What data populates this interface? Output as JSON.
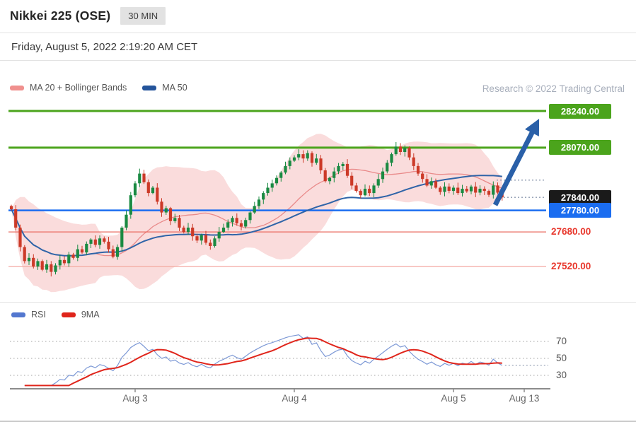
{
  "header": {
    "title": "Nikkei 225 (OSE)",
    "timeframe_badge": "30 MIN",
    "datetime": "Friday, August 5, 2022 2:19:20 AM CET"
  },
  "main_legend": {
    "ma20_label": "MA 20 + Bollinger Bands",
    "ma50_label": "MA 50",
    "watermark": "Research © 2022 Trading Central"
  },
  "rsi_legend": {
    "rsi_label": "RSI",
    "ma_label": "9MA"
  },
  "chart_data": {
    "type": "candlestick",
    "symbol": "Nikkei 225 (OSE)",
    "interval": "30 MIN",
    "as_of": "Friday, August 5, 2022 2:19:20 AM CET",
    "levels": [
      {
        "price": 28240.0,
        "label": "28240.00",
        "role": "resistance-2",
        "line_color": "#4ba41c",
        "line_width": 3,
        "badge": "green"
      },
      {
        "price": 28070.0,
        "label": "28070.00",
        "role": "resistance-1",
        "line_color": "#4ba41c",
        "line_width": 3,
        "badge": "green"
      },
      {
        "price": 27840.0,
        "label": "27840.00",
        "role": "last-price",
        "line_color": null,
        "line_width": 0,
        "badge": "black"
      },
      {
        "price": 27780.0,
        "label": "27780.00",
        "role": "pivot",
        "line_color": "#1b6df0",
        "line_width": 2.5,
        "badge": "blue"
      },
      {
        "price": 27680.0,
        "label": "27680.00",
        "role": "support-1",
        "line_color": "#ea6a5f",
        "line_width": 1.3,
        "badge": "text"
      },
      {
        "price": 27520.0,
        "label": "27520.00",
        "role": "support-2",
        "line_color": "#f4a8a0",
        "line_width": 1.3,
        "badge": "text"
      }
    ],
    "x_ticks": [
      {
        "label": "Aug 3",
        "index": 28
      },
      {
        "label": "Aug 4",
        "index": 64
      },
      {
        "label": "Aug 5",
        "index": 100
      },
      {
        "label": "Aug 13",
        "index": 116
      }
    ],
    "candles": {
      "open_first": 27800,
      "closes": [
        27785,
        27700,
        27610,
        27545,
        27560,
        27520,
        27545,
        27505,
        27530,
        27495,
        27525,
        27550,
        27535,
        27575,
        27560,
        27600,
        27585,
        27625,
        27645,
        27620,
        27650,
        27635,
        27600,
        27565,
        27610,
        27700,
        27760,
        27850,
        27905,
        27950,
        27910,
        27860,
        27885,
        27820,
        27770,
        27790,
        27730,
        27745,
        27700,
        27680,
        27700,
        27660,
        27640,
        27665,
        27630,
        27615,
        27650,
        27680,
        27700,
        27725,
        27745,
        27720,
        27705,
        27735,
        27770,
        27800,
        27830,
        27860,
        27885,
        27905,
        27930,
        27955,
        27985,
        28010,
        28025,
        28040,
        28020,
        28045,
        28000,
        28020,
        27965,
        27915,
        27930,
        27960,
        27985,
        27995,
        27940,
        27895,
        27870,
        27850,
        27880,
        27860,
        27895,
        27925,
        27960,
        28000,
        28040,
        28075,
        28050,
        28070,
        28025,
        27985,
        27950,
        27925,
        27895,
        27915,
        27885,
        27865,
        27890,
        27870,
        27885,
        27860,
        27880,
        27868,
        27890,
        27862,
        27880,
        27870,
        27852,
        27895,
        27862,
        27840
      ]
    },
    "indicators": {
      "ma20_bollinger": true,
      "ma50": true,
      "rsi_period": 14,
      "rsi_ma_period": 9,
      "rsi_gridlines": [
        70,
        50,
        30
      ]
    },
    "projection_dotted_prices": [
      27920,
      27840
    ],
    "forecast_arrow": {
      "direction": "up",
      "from_price": 27840,
      "to_price": 28240
    },
    "colors": {
      "up": "#1a8a42",
      "down": "#cc3a28",
      "band": "#f5b2b2",
      "ma20": "#e98a8a",
      "ma50": "#2f64a8",
      "rsi": "#7d99d6",
      "rsi_ma": "#e0251b",
      "arrow": "#2a60a8",
      "green_badge": "#4ba41c",
      "blue_badge": "#1b6df0",
      "black_badge": "#1a1a1a",
      "red_text": "#e8372c"
    }
  }
}
